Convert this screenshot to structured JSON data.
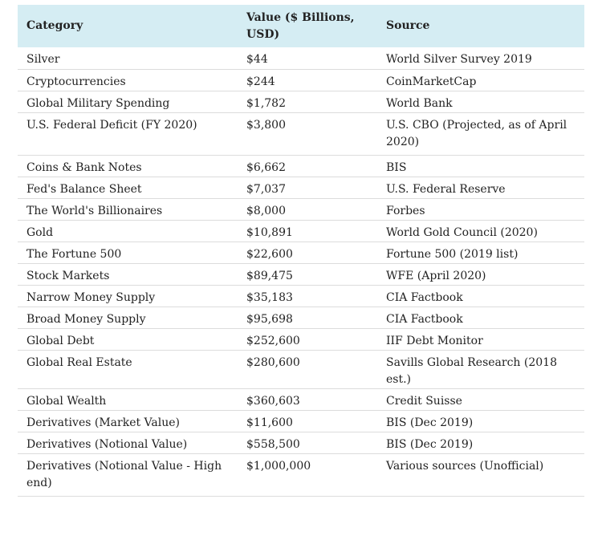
{
  "table": {
    "headers": {
      "category": "Category",
      "value": "Value ($ Billions, USD)",
      "source": "Source"
    },
    "rows": [
      {
        "category": "Silver",
        "value": "$44",
        "source": "World Silver Survey 2019"
      },
      {
        "category": "Cryptocurrencies",
        "value": "$244",
        "source": "CoinMarketCap"
      },
      {
        "category": "Global Military Spending",
        "value": "$1,782",
        "source": "World Bank"
      },
      {
        "category": "U.S. Federal Deficit (FY 2020)",
        "value": "$3,800",
        "source": "U.S. CBO (Projected, as of April 2020)"
      },
      {
        "category": "Coins & Bank Notes",
        "value": "$6,662",
        "source": "BIS"
      },
      {
        "category": "Fed's Balance Sheet",
        "value": "$7,037",
        "source": "U.S. Federal Reserve"
      },
      {
        "category": "The World's Billionaires",
        "value": "$8,000",
        "source": "Forbes"
      },
      {
        "category": "Gold",
        "value": "$10,891",
        "source": "World Gold Council (2020)"
      },
      {
        "category": "The Fortune 500",
        "value": "$22,600",
        "source": "Fortune 500 (2019 list)"
      },
      {
        "category": "Stock Markets",
        "value": "$89,475",
        "source": "WFE (April 2020)"
      },
      {
        "category": "Narrow Money Supply",
        "value": "$35,183",
        "source": "CIA Factbook"
      },
      {
        "category": "Broad Money Supply",
        "value": "$95,698",
        "source": "CIA Factbook"
      },
      {
        "category": "Global Debt",
        "value": "$252,600",
        "source": "IIF Debt Monitor"
      },
      {
        "category": "Global Real Estate",
        "value": "$280,600",
        "source": "Savills Global Research (2018 est.)"
      },
      {
        "category": "Global Wealth",
        "value": "$360,603",
        "source": "Credit Suisse"
      },
      {
        "category": "Derivatives (Market Value)",
        "value": "$11,600",
        "source": "BIS (Dec 2019)"
      },
      {
        "category": "Derivatives (Notional Value)",
        "value": "$558,500",
        "source": "BIS (Dec 2019)"
      },
      {
        "category": "Derivatives (Notional Value - High end)",
        "value": "$1,000,000",
        "source": "Various sources (Unofficial)"
      }
    ]
  },
  "colors": {
    "header_background": "#d5edf3",
    "row_divider": "#dcdcdc",
    "text": "#222222"
  }
}
